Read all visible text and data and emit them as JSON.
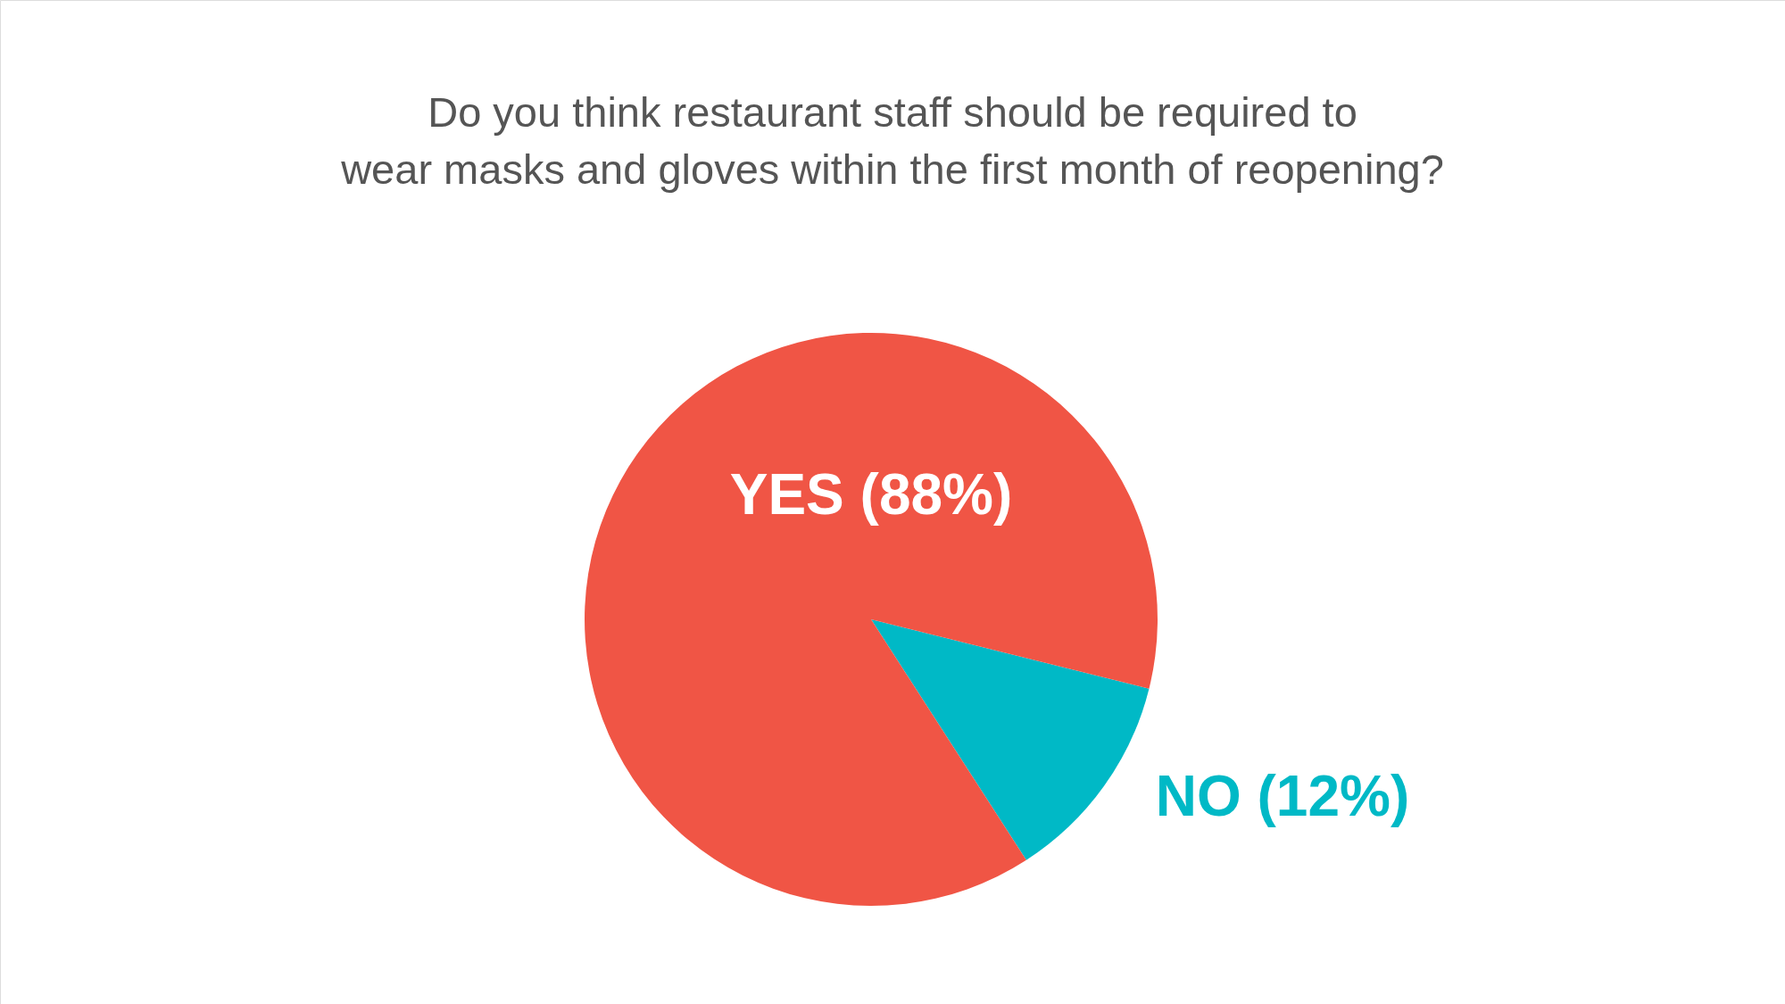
{
  "chart_data": {
    "type": "pie",
    "title": "Do you think restaurant staff should be required to\nwear masks and gloves within the first month of reopening?",
    "categories": [
      "NO (12%)",
      "YES (88%)"
    ],
    "values": [
      12,
      88
    ],
    "colors": [
      "#00b9c6",
      "#f05545"
    ]
  }
}
